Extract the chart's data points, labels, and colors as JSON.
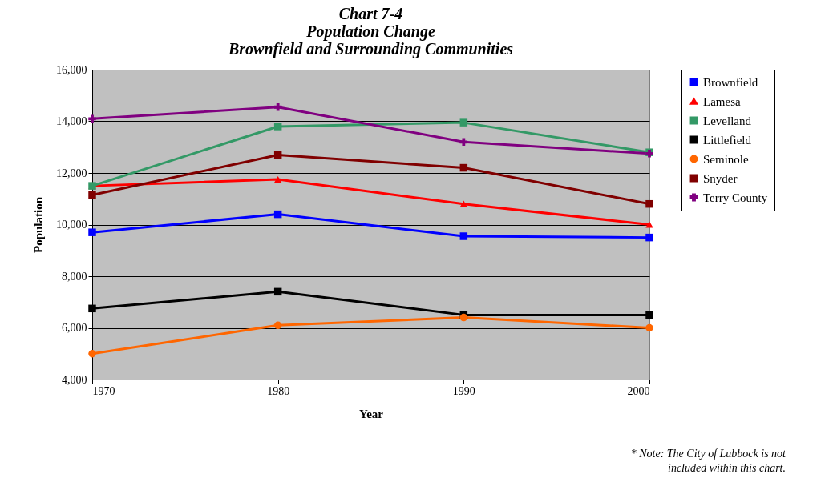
{
  "chart_data": {
    "type": "line",
    "title": "Chart 7-4\nPopulation Change\nBrownfield and Surrounding Communities",
    "xlabel": "Year",
    "ylabel": "Population",
    "x": [
      1970,
      1980,
      1990,
      2000
    ],
    "xlim": [
      1970,
      2000
    ],
    "xticks": [
      1970,
      1980,
      1990,
      2000
    ],
    "ylim": [
      4000,
      16000
    ],
    "yticks": [
      {
        "value": 4000,
        "label": "4,000"
      },
      {
        "value": 6000,
        "label": "6,000"
      },
      {
        "value": 8000,
        "label": "8,000"
      },
      {
        "value": 10000,
        "label": "10,000"
      },
      {
        "value": 12000,
        "label": "12,000"
      },
      {
        "value": 14000,
        "label": "14,000"
      },
      {
        "value": 16000,
        "label": "16,000"
      }
    ],
    "grid": "y",
    "legend": "right",
    "line_style": "solid",
    "series": [
      {
        "name": "Brownfield",
        "color": "#0000ff",
        "marker": "square",
        "values": [
          9700,
          10400,
          9550,
          9500
        ]
      },
      {
        "name": "Lamesa",
        "color": "#ff0000",
        "marker": "triangle",
        "values": [
          11500,
          11750,
          10800,
          10000
        ]
      },
      {
        "name": "Levelland",
        "color": "#339966",
        "marker": "square",
        "values": [
          11500,
          13800,
          13950,
          12800
        ]
      },
      {
        "name": "Littlefield",
        "color": "#000000",
        "marker": "square",
        "values": [
          6750,
          7400,
          6500,
          6500
        ]
      },
      {
        "name": "Seminole",
        "color": "#ff6600",
        "marker": "circle",
        "values": [
          5000,
          6100,
          6400,
          6000
        ]
      },
      {
        "name": "Snyder",
        "color": "#800000",
        "marker": "square",
        "values": [
          11150,
          12700,
          12200,
          10800
        ]
      },
      {
        "name": "Terry County",
        "color": "#800080",
        "marker": "cross",
        "values": [
          14100,
          14550,
          13200,
          12750
        ]
      }
    ],
    "annotations": [
      "* Note: The City of Lubbock is not included within this chart."
    ]
  }
}
